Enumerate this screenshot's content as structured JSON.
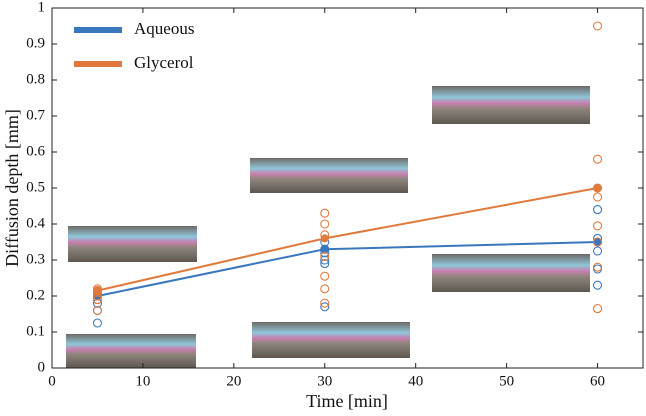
{
  "chart_data": {
    "type": "line",
    "xlabel": "Time [min]",
    "ylabel": "Diffusion depth [mm]",
    "xlim": [
      0,
      65
    ],
    "xticks": [
      0,
      10,
      20,
      30,
      40,
      50,
      60
    ],
    "ylim": [
      0,
      1
    ],
    "yticks": [
      0,
      0.1,
      0.2,
      0.3,
      0.4,
      0.5,
      0.6,
      0.7,
      0.8,
      0.9,
      1
    ],
    "legend": "upper left",
    "grid": false,
    "series": [
      {
        "name": "Aqueous",
        "color": "#3a78bd",
        "x": [
          5,
          30,
          60
        ],
        "values": [
          0.2,
          0.33,
          0.35
        ],
        "points": {
          "x": [
            5,
            5,
            5,
            5,
            5,
            5,
            30,
            30,
            30,
            30,
            30,
            30,
            60,
            60,
            60,
            60,
            60,
            60
          ],
          "y": [
            0.125,
            0.16,
            0.18,
            0.19,
            0.2,
            0.21,
            0.17,
            0.29,
            0.3,
            0.32,
            0.33,
            0.35,
            0.23,
            0.275,
            0.325,
            0.35,
            0.36,
            0.44
          ]
        }
      },
      {
        "name": "Glycerol",
        "color": "#e07a3c",
        "x": [
          5,
          30,
          60
        ],
        "values": [
          0.215,
          0.36,
          0.5
        ],
        "points": {
          "x": [
            5,
            5,
            5,
            5,
            5,
            5,
            30,
            30,
            30,
            30,
            30,
            30,
            30,
            60,
            60,
            60,
            60,
            60,
            60,
            60,
            60
          ],
          "y": [
            0.16,
            0.19,
            0.2,
            0.21,
            0.215,
            0.22,
            0.18,
            0.22,
            0.255,
            0.31,
            0.37,
            0.4,
            0.43,
            0.165,
            0.28,
            0.35,
            0.395,
            0.475,
            0.5,
            0.58,
            0.95
          ]
        }
      }
    ]
  }
}
